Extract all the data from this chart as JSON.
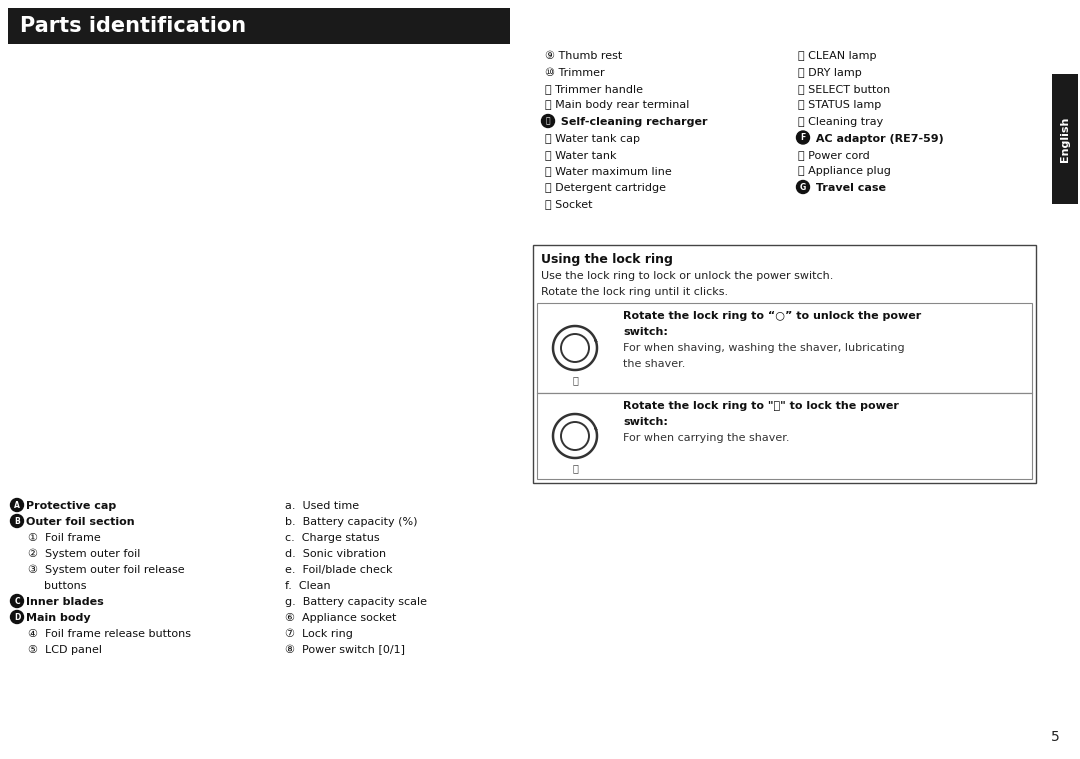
{
  "title": "Parts identification",
  "title_bg": "#1a1a1a",
  "title_color": "#ffffff",
  "page_bg": "#ffffff",
  "page_number": "5",
  "english_tab_color": "#1a1a1a",
  "english_tab_text": "English",
  "lock_ring_title": "Using the lock ring",
  "lock_ring_intro1": "Use the lock ring to lock or unlock the power switch.",
  "lock_ring_intro2": "Rotate the lock ring until it clicks.",
  "unlock_bold1": "Rotate the lock ring to “○” to unlock the power",
  "unlock_bold2": "switch:",
  "unlock_text1": "For when shaving, washing the shaver, lubricating",
  "unlock_text2": "the shaver.",
  "lock_bold1": "Rotate the lock ring to \"🔒\" to lock the power",
  "lock_bold2": "switch:",
  "lock_text": "For when carrying the shaver.",
  "col1_items": [
    [
      "⑨",
      " Thumb rest",
      false
    ],
    [
      "⑩",
      " Trimmer",
      false
    ],
    [
      "⑪",
      " Trimmer handle",
      false
    ],
    [
      "⑫",
      " Main body rear terminal",
      false
    ],
    [
      "ⓔ",
      " Self-cleaning recharger",
      true
    ],
    [
      "⑬",
      " Water tank cap",
      false
    ],
    [
      "⑭",
      " Water tank",
      false
    ],
    [
      "⑮",
      " Water maximum line",
      false
    ],
    [
      "⑯",
      " Detergent cartridge",
      false
    ],
    [
      "⑰",
      " Socket",
      false
    ]
  ],
  "col2_items": [
    [
      "⑱",
      " CLEAN lamp",
      false
    ],
    [
      "⑲",
      " DRY lamp",
      false
    ],
    [
      "⑳",
      " SELECT button",
      false
    ],
    [
      "⑴",
      " STATUS lamp",
      false
    ],
    [
      "⑵",
      " Cleaning tray",
      false
    ],
    [
      "ⓕ",
      " AC adaptor (RE7-59)",
      true
    ],
    [
      "⑶",
      " Power cord",
      false
    ],
    [
      "⑷",
      " Appliance plug",
      false
    ],
    [
      "ⓖ",
      " Travel case",
      true
    ]
  ],
  "bot_left_items": [
    [
      "ⓐ",
      "Protective cap",
      "A",
      false
    ],
    [
      "ⓑ",
      "Outer foil section",
      "B",
      false
    ],
    [
      "①",
      "Foil frame",
      "",
      true
    ],
    [
      "②",
      "System outer foil",
      "",
      true
    ],
    [
      "③",
      "System outer foil release",
      "",
      true
    ],
    [
      "",
      "buttons",
      "",
      true
    ],
    [
      "ⓒ",
      "Inner blades",
      "C",
      false
    ],
    [
      "ⓓ",
      "Main body",
      "D",
      false
    ],
    [
      "④",
      "Foil frame release buttons",
      "",
      true
    ],
    [
      "⑤",
      "LCD panel",
      "",
      true
    ]
  ],
  "bot_right_items": [
    [
      "a.",
      "Used time",
      false
    ],
    [
      "b.",
      "Battery capacity (%)",
      false
    ],
    [
      "c.",
      "Charge status",
      false
    ],
    [
      "d.",
      "Sonic vibration",
      false
    ],
    [
      "e.",
      "Foil/blade check",
      false
    ],
    [
      "f.",
      "Clean",
      false
    ],
    [
      "g.",
      "Battery capacity scale",
      false
    ],
    [
      "⑥",
      "Appliance socket",
      false
    ],
    [
      "⑦",
      "Lock ring",
      false
    ],
    [
      "⑧",
      "Power switch [0/1]",
      false
    ]
  ]
}
